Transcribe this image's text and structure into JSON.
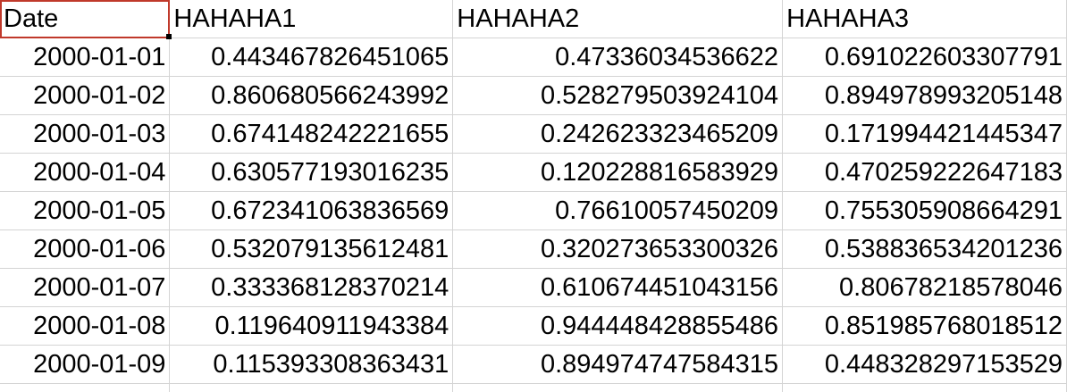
{
  "headers": [
    "Date",
    "HAHAHA1",
    "HAHAHA2",
    "HAHAHA3"
  ],
  "rows": [
    [
      "2000-01-01",
      "0.443467826451065",
      "0.47336034536622",
      "0.691022603307791"
    ],
    [
      "2000-01-02",
      "0.860680566243992",
      "0.528279503924104",
      "0.894978993205148"
    ],
    [
      "2000-01-03",
      "0.674148242221655",
      "0.242623323465209",
      "0.171994421445347"
    ],
    [
      "2000-01-04",
      "0.630577193016235",
      "0.120228816583929",
      "0.470259222647183"
    ],
    [
      "2000-01-05",
      "0.672341063836569",
      "0.76610057450209",
      "0.755305908664291"
    ],
    [
      "2000-01-06",
      "0.532079135612481",
      "0.320273653300326",
      "0.538836534201236"
    ],
    [
      "2000-01-07",
      "0.333368128370214",
      "0.610674451043156",
      "0.80678218578046"
    ],
    [
      "2000-01-08",
      "0.119640911943384",
      "0.944448428855486",
      "0.851985768018512"
    ],
    [
      "2000-01-09",
      "0.115393308363431",
      "0.894974747584315",
      "0.448328297153529"
    ]
  ],
  "colors": {
    "grid_line": "#d4d4d4",
    "selection_border": "#c0392b",
    "text": "#000000",
    "background": "#ffffff"
  }
}
